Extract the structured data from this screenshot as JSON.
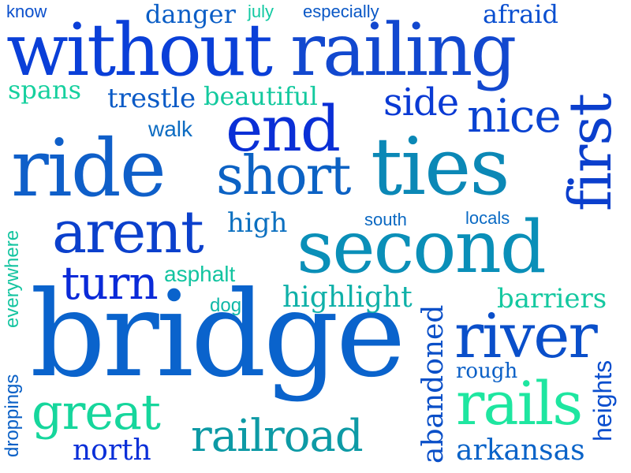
{
  "words": {
    "bridge": {
      "text": "bridge",
      "color": "#0a63cc"
    },
    "without": {
      "text": "without",
      "color": "#0a3fd8"
    },
    "railing": {
      "text": "railing",
      "color": "#1248cf"
    },
    "ride": {
      "text": "ride",
      "color": "#0f5fc9"
    },
    "second": {
      "text": "second",
      "color": "#0a8fb8"
    },
    "ties": {
      "text": "ties",
      "color": "#0b88b6"
    },
    "end": {
      "text": "end",
      "color": "#0a2fd6"
    },
    "short": {
      "text": "short",
      "color": "#0c62c4"
    },
    "arent": {
      "text": "arent",
      "color": "#0b40cc"
    },
    "first": {
      "text": "first",
      "color": "#0b3fcd"
    },
    "river": {
      "text": "river",
      "color": "#0a4fca"
    },
    "rails": {
      "text": "rails",
      "color": "#1ee6a0"
    },
    "railroad": {
      "text": "railroad",
      "color": "#0d9aa5"
    },
    "great": {
      "text": "great",
      "color": "#16d69c"
    },
    "turn": {
      "text": "turn",
      "color": "#0a2ad8"
    },
    "nice": {
      "text": "nice",
      "color": "#0a43d2"
    },
    "side": {
      "text": "side",
      "color": "#0a3ad4"
    },
    "highlight": {
      "text": "highlight",
      "color": "#0fb0a8"
    },
    "barriers": {
      "text": "barriers",
      "color": "#14c8a0"
    },
    "arkansas": {
      "text": "arkansas",
      "color": "#0a63c8"
    },
    "north": {
      "text": "north",
      "color": "#0a2fd8"
    },
    "trestle": {
      "text": "trestle",
      "color": "#0a5ac6"
    },
    "beautiful": {
      "text": "beautiful",
      "color": "#13c99e"
    },
    "spans": {
      "text": "spans",
      "color": "#16d09e"
    },
    "danger": {
      "text": "danger",
      "color": "#0b5ec6"
    },
    "afraid": {
      "text": "afraid",
      "color": "#0a4fd0"
    },
    "walk": {
      "text": "walk",
      "color": "#0d6cc2"
    },
    "high": {
      "text": "high",
      "color": "#0c70c0"
    },
    "asphalt": {
      "text": "asphalt",
      "color": "#13c4a0"
    },
    "dog": {
      "text": "dog",
      "color": "#10b8a8"
    },
    "rough": {
      "text": "rough",
      "color": "#0a5fc6"
    },
    "south": {
      "text": "south",
      "color": "#0a68c2"
    },
    "locals": {
      "text": "locals",
      "color": "#0a6ac4"
    },
    "know": {
      "text": "know",
      "color": "#0a4fcc"
    },
    "july": {
      "text": "july",
      "color": "#12c9a2"
    },
    "especially": {
      "text": "especially",
      "color": "#0a58c6"
    },
    "abandoned": {
      "text": "abandoned",
      "color": "#0a4fc8"
    },
    "heights": {
      "text": "heights",
      "color": "#0a4ece"
    },
    "everywhere": {
      "text": "everywhere",
      "color": "#14c4a0"
    },
    "droppings": {
      "text": "droppings",
      "color": "#0a60c6"
    }
  }
}
